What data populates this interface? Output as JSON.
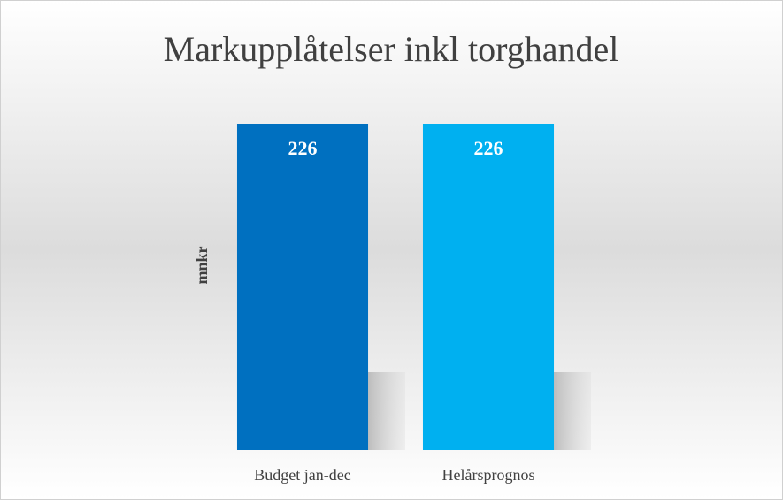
{
  "chart_data": {
    "type": "bar",
    "title": "Markupplåtelser inkl torghandel",
    "y_label": "mnkr",
    "categories": [
      "Budget jan-dec",
      "Helårsprognos"
    ],
    "values": [
      226,
      226
    ],
    "colors": [
      "#0070c0",
      "#00b0f0"
    ]
  }
}
